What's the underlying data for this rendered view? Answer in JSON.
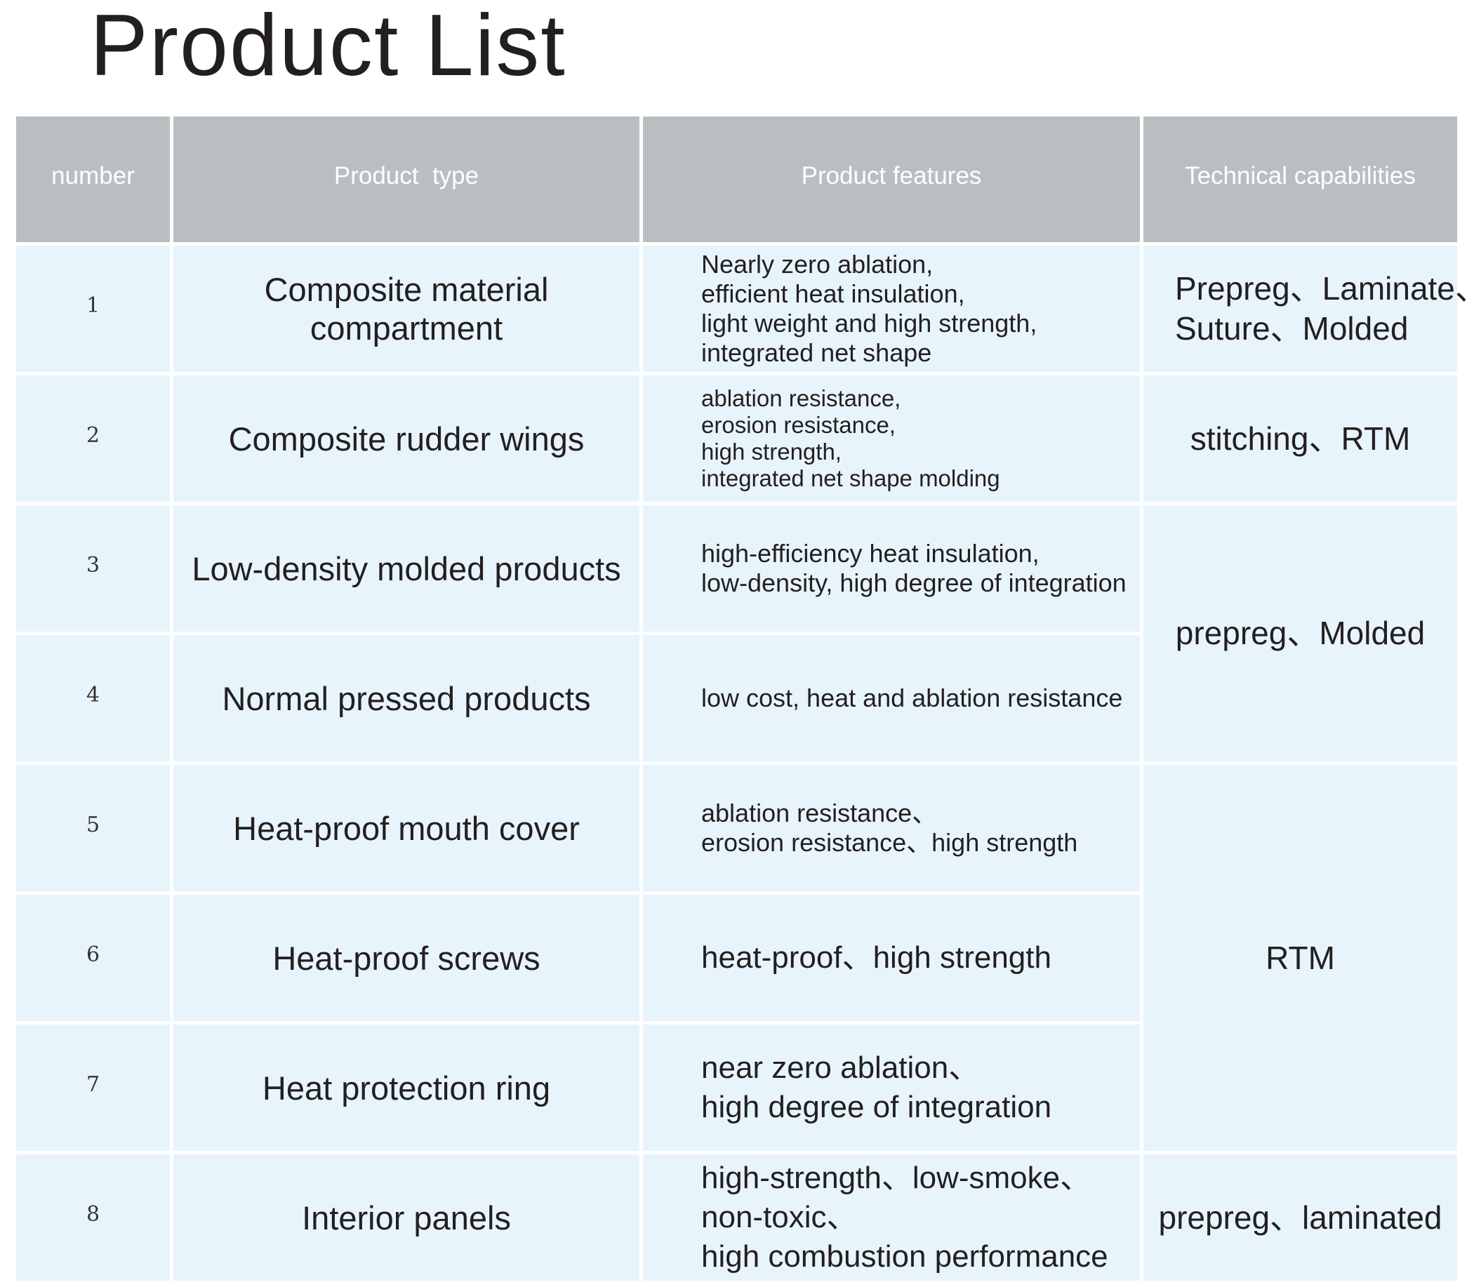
{
  "title": "Product List",
  "headers": {
    "number": "number",
    "type": "Product  type",
    "features": "Product features",
    "capabilities": "Technical capabilities"
  },
  "rows": [
    {
      "number": "1",
      "type": "Composite material compartment",
      "features": [
        "Nearly zero ablation,",
        "efficient heat insulation,",
        "light weight and high strength,",
        "integrated net shape"
      ]
    },
    {
      "number": "2",
      "type": "Composite rudder wings",
      "features": [
        "ablation resistance,",
        "erosion resistance,",
        "high strength,",
        "integrated net shape molding"
      ]
    },
    {
      "number": "3",
      "type": "Low-density molded products",
      "features": [
        "high-efficiency heat insulation,",
        "low-density, high degree of integration"
      ]
    },
    {
      "number": "4",
      "type": "Normal pressed products",
      "features": [
        "low cost, heat and ablation resistance"
      ]
    },
    {
      "number": "5",
      "type": "Heat-proof mouth cover",
      "features": [
        "ablation resistance、",
        "erosion resistance、high strength"
      ]
    },
    {
      "number": "6",
      "type": "Heat-proof screws",
      "features": [
        "heat-proof、high strength"
      ]
    },
    {
      "number": "7",
      "type": "Heat protection ring",
      "features": [
        "near zero ablation、",
        "high degree of integration"
      ]
    },
    {
      "number": "8",
      "type": "Interior panels",
      "features": [
        "high-strength、low-smoke、",
        "non-toxic、",
        "high combustion performance"
      ]
    }
  ],
  "capabilities": [
    {
      "rows": "1",
      "lines": [
        "Prepreg、Laminate、",
        "Suture、Molded"
      ]
    },
    {
      "rows": "2",
      "lines": [
        "stitching、RTM"
      ]
    },
    {
      "rows": "3-4",
      "lines": [
        "prepreg、Molded"
      ]
    },
    {
      "rows": "5-7",
      "lines": [
        "RTM"
      ]
    },
    {
      "rows": "8",
      "lines": [
        "prepreg、laminated"
      ]
    }
  ],
  "colors": {
    "header_bg": "#b9bec1",
    "row_bg": "#e8f4fc",
    "text": "#231f20"
  }
}
